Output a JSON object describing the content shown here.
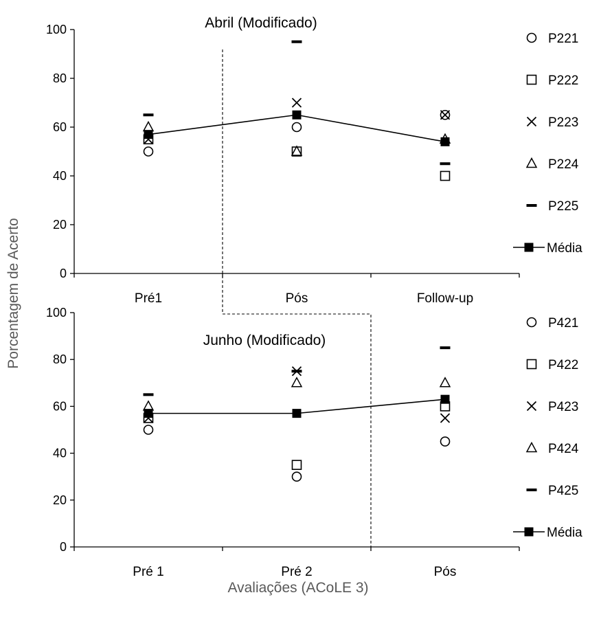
{
  "ylabel": "Porcentagem de Acerto",
  "xlabel": "Avaliações (ACoLE 3)",
  "colors": {
    "axis": "#000000",
    "marker": "#000000",
    "ylabel": "#595959"
  },
  "chart_data": [
    {
      "type": "scatter",
      "title": "Abril (Modificado)",
      "categories": [
        "Pré1",
        "Pós",
        "Follow-up"
      ],
      "ylim": [
        0,
        100
      ],
      "yticks": [
        0,
        20,
        40,
        60,
        80,
        100
      ],
      "legend_position": "right",
      "series": [
        {
          "name": "P221",
          "marker": "circle",
          "values": [
            50,
            60,
            65
          ]
        },
        {
          "name": "P222",
          "marker": "square",
          "values": [
            55,
            50,
            40
          ]
        },
        {
          "name": "P223",
          "marker": "x",
          "values": [
            55,
            70,
            65
          ]
        },
        {
          "name": "P224",
          "marker": "triangle",
          "values": [
            60,
            50,
            55
          ]
        },
        {
          "name": "P225",
          "marker": "dash",
          "values": [
            65,
            95,
            45
          ]
        },
        {
          "name": "Média",
          "marker": "filled-square-line",
          "values": [
            57,
            65,
            54
          ]
        }
      ],
      "phase_divider_after": [
        0
      ]
    },
    {
      "type": "scatter",
      "title": "Junho (Modificado)",
      "categories": [
        "Pré 1",
        "Pré 2",
        "Pós"
      ],
      "ylim": [
        0,
        100
      ],
      "yticks": [
        0,
        20,
        40,
        60,
        80,
        100
      ],
      "legend_position": "right",
      "series": [
        {
          "name": "P421",
          "marker": "circle",
          "values": [
            50,
            30,
            45
          ]
        },
        {
          "name": "P422",
          "marker": "square",
          "values": [
            55,
            35,
            60
          ]
        },
        {
          "name": "P423",
          "marker": "x",
          "values": [
            55,
            75,
            55
          ]
        },
        {
          "name": "P424",
          "marker": "triangle",
          "values": [
            60,
            70,
            70
          ]
        },
        {
          "name": "P425",
          "marker": "dash",
          "values": [
            65,
            75,
            85
          ]
        },
        {
          "name": "Média",
          "marker": "filled-square-line",
          "values": [
            57,
            57,
            63
          ]
        }
      ],
      "phase_divider_after": [
        1
      ]
    }
  ]
}
